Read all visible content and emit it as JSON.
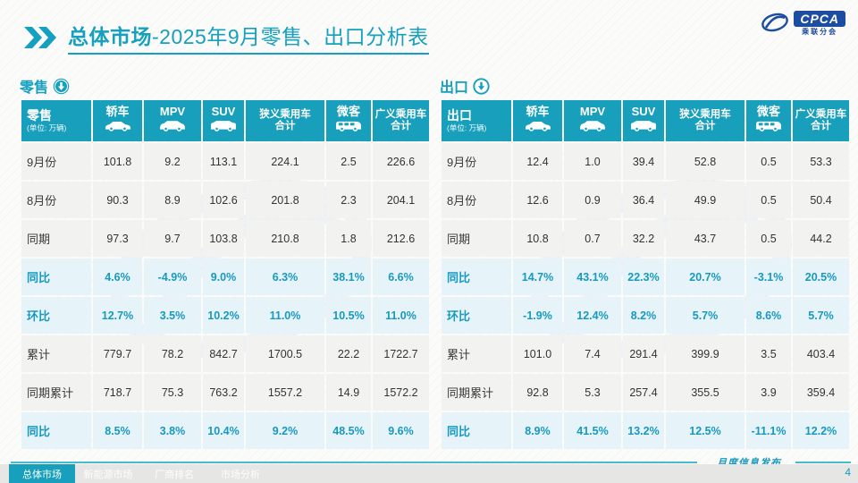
{
  "page": {
    "title_bold": "总体市场",
    "title_rest": "-2025年9月零售、出口分析表",
    "footer_note": "月度信息发布",
    "page_number": "4"
  },
  "logo": {
    "badge": "CPCA",
    "subtext": "乘联分会"
  },
  "columns": [
    {
      "label": "轿车",
      "icon": "sedan-icon"
    },
    {
      "label": "MPV",
      "icon": "mpv-icon"
    },
    {
      "label": "SUV",
      "icon": "suv-icon"
    },
    {
      "line1": "狭义乘用车",
      "line2": "合计"
    },
    {
      "label": "微客",
      "icon": "minibus-icon"
    },
    {
      "line1": "广义乘用车",
      "line2": "合计"
    }
  ],
  "tables": [
    {
      "name": "零售",
      "unit": "(单位: 万辆)",
      "rows": [
        {
          "label": "9月份",
          "highlight": false,
          "values": [
            "101.8",
            "9.2",
            "113.1",
            "224.1",
            "2.5",
            "226.6"
          ]
        },
        {
          "label": "8月份",
          "highlight": false,
          "values": [
            "90.3",
            "8.9",
            "102.6",
            "201.8",
            "2.3",
            "204.1"
          ]
        },
        {
          "label": "同期",
          "highlight": false,
          "values": [
            "97.3",
            "9.7",
            "103.8",
            "210.8",
            "1.8",
            "212.6"
          ]
        },
        {
          "label": "同比",
          "highlight": true,
          "values": [
            "4.6%",
            "-4.9%",
            "9.0%",
            "6.3%",
            "38.1%",
            "6.6%"
          ]
        },
        {
          "label": "环比",
          "highlight": true,
          "values": [
            "12.7%",
            "3.5%",
            "10.2%",
            "11.0%",
            "10.5%",
            "11.0%"
          ]
        },
        {
          "label": "累计",
          "highlight": false,
          "values": [
            "779.7",
            "78.2",
            "842.7",
            "1700.5",
            "22.2",
            "1722.7"
          ]
        },
        {
          "label": "同期累计",
          "highlight": false,
          "values": [
            "718.7",
            "75.3",
            "763.2",
            "1557.2",
            "14.9",
            "1572.2"
          ]
        },
        {
          "label": "同比",
          "highlight": true,
          "values": [
            "8.5%",
            "3.8%",
            "10.4%",
            "9.2%",
            "48.5%",
            "9.6%"
          ]
        }
      ]
    },
    {
      "name": "出口",
      "unit": "(单位: 万辆)",
      "rows": [
        {
          "label": "9月份",
          "highlight": false,
          "values": [
            "12.4",
            "1.0",
            "39.4",
            "52.8",
            "0.5",
            "53.3"
          ]
        },
        {
          "label": "8月份",
          "highlight": false,
          "values": [
            "12.6",
            "0.9",
            "36.4",
            "49.9",
            "0.5",
            "50.4"
          ]
        },
        {
          "label": "同期",
          "highlight": false,
          "values": [
            "10.8",
            "0.7",
            "32.2",
            "43.7",
            "0.5",
            "44.2"
          ]
        },
        {
          "label": "同比",
          "highlight": true,
          "values": [
            "14.7%",
            "43.1%",
            "22.3%",
            "20.7%",
            "-3.1%",
            "20.5%"
          ]
        },
        {
          "label": "环比",
          "highlight": true,
          "values": [
            "-1.9%",
            "12.4%",
            "8.2%",
            "5.7%",
            "8.6%",
            "5.7%"
          ]
        },
        {
          "label": "累计",
          "highlight": false,
          "values": [
            "101.0",
            "7.4",
            "291.4",
            "399.9",
            "3.5",
            "403.4"
          ]
        },
        {
          "label": "同期累计",
          "highlight": false,
          "values": [
            "92.8",
            "5.3",
            "257.4",
            "355.5",
            "3.9",
            "359.4"
          ]
        },
        {
          "label": "同比",
          "highlight": true,
          "values": [
            "8.9%",
            "41.5%",
            "13.2%",
            "12.5%",
            "-11.1%",
            "12.2%"
          ]
        }
      ]
    }
  ],
  "footer_tabs": [
    {
      "label": "总体市场",
      "active": true
    },
    {
      "label": "新能源市场",
      "active": false
    },
    {
      "label": "厂商排名",
      "active": false
    },
    {
      "label": "市场分析",
      "active": false
    }
  ],
  "colors": {
    "accent": "#189FBC",
    "highlight_bg": "#E6F3F9",
    "row_bg": "#F2F2F1",
    "logo_blue": "#1C4DA1"
  }
}
